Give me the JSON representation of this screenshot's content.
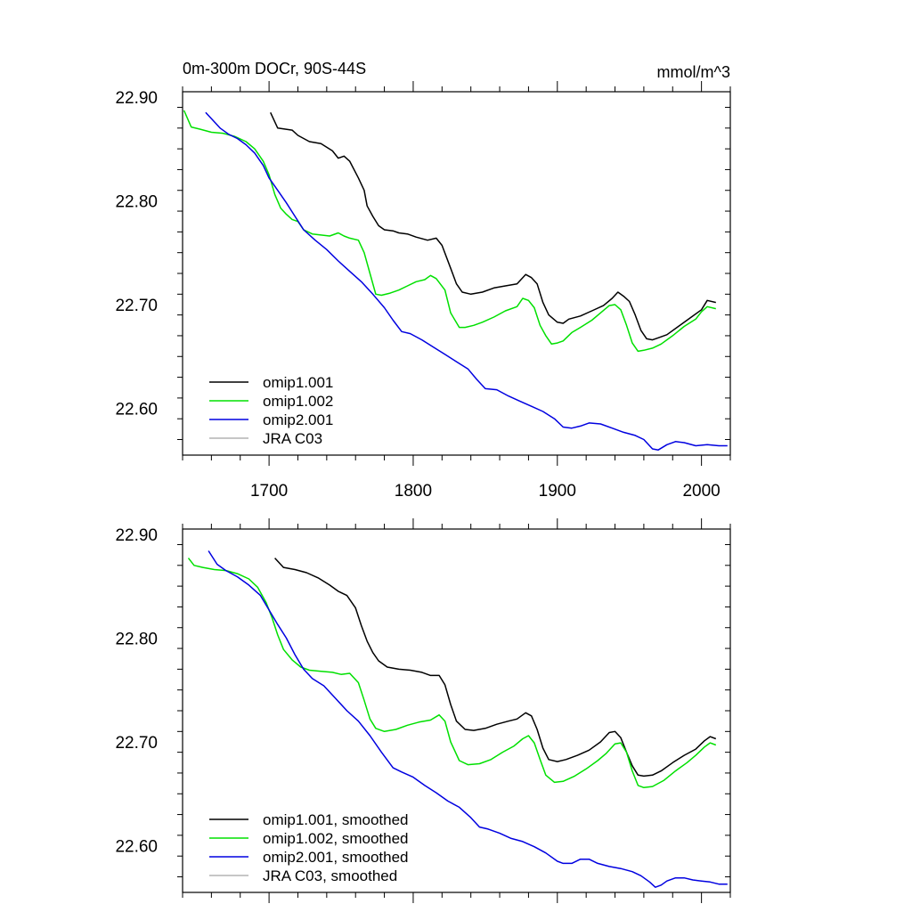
{
  "chart_data": [
    {
      "type": "line",
      "title": "0m-300m DOCr, 90S-44S",
      "units": "mmol/m^3",
      "xlim": [
        1640,
        2020
      ],
      "ylim": [
        22.555,
        22.905
      ],
      "yticks": [
        22.6,
        22.7,
        22.8,
        22.9
      ],
      "ytick_labels": [
        "22.60",
        "22.70",
        "22.80",
        "22.90"
      ],
      "xticks": [
        1700,
        1800,
        1900,
        2000
      ],
      "xtick_labels": [
        "1700",
        "1800",
        "1900",
        "2000"
      ],
      "show_xtick_labels": true,
      "legend_position": "bottom-left",
      "series": [
        {
          "name": "omip1.001",
          "color": "#000000",
          "x": [
            1701,
            1706,
            1716,
            1720,
            1728,
            1736,
            1744,
            1748,
            1752,
            1756,
            1762,
            1766,
            1768,
            1772,
            1776,
            1780,
            1786,
            1790,
            1796,
            1802,
            1810,
            1816,
            1820,
            1826,
            1830,
            1834,
            1840,
            1848,
            1856,
            1864,
            1872,
            1878,
            1882,
            1886,
            1890,
            1894,
            1900,
            1904,
            1908,
            1916,
            1924,
            1932,
            1938,
            1942,
            1946,
            1950,
            1954,
            1958,
            1962,
            1966,
            1970,
            1976,
            1984,
            1992,
            2000,
            2004,
            2010
          ],
          "y": [
            22.885,
            22.87,
            22.868,
            22.863,
            22.857,
            22.855,
            22.848,
            22.841,
            22.843,
            22.838,
            22.822,
            22.81,
            22.795,
            22.785,
            22.776,
            22.772,
            22.771,
            22.769,
            22.768,
            22.765,
            22.762,
            22.764,
            22.757,
            22.735,
            22.72,
            22.712,
            22.71,
            22.712,
            22.716,
            22.718,
            22.72,
            22.729,
            22.726,
            22.72,
            22.702,
            22.69,
            22.683,
            22.682,
            22.686,
            22.689,
            22.694,
            22.699,
            22.706,
            22.712,
            22.708,
            22.703,
            22.69,
            22.675,
            22.667,
            22.666,
            22.668,
            22.671,
            22.679,
            22.687,
            22.695,
            22.704,
            22.702
          ]
        },
        {
          "name": "omip1.002",
          "color": "#00e000",
          "x": [
            1641,
            1646,
            1652,
            1660,
            1668,
            1676,
            1684,
            1690,
            1696,
            1700,
            1704,
            1708,
            1712,
            1716,
            1720,
            1724,
            1730,
            1736,
            1742,
            1748,
            1752,
            1756,
            1762,
            1766,
            1770,
            1774,
            1778,
            1784,
            1790,
            1796,
            1802,
            1808,
            1812,
            1816,
            1822,
            1826,
            1832,
            1836,
            1842,
            1848,
            1856,
            1864,
            1872,
            1876,
            1880,
            1884,
            1888,
            1892,
            1896,
            1900,
            1904,
            1910,
            1916,
            1924,
            1930,
            1936,
            1940,
            1944,
            1948,
            1952,
            1956,
            1960,
            1966,
            1972,
            1980,
            1988,
            1996,
            2000,
            2004,
            2010
          ],
          "y": [
            22.887,
            22.871,
            22.869,
            22.866,
            22.865,
            22.862,
            22.857,
            22.85,
            22.838,
            22.825,
            22.806,
            22.793,
            22.787,
            22.782,
            22.78,
            22.772,
            22.768,
            22.767,
            22.766,
            22.769,
            22.766,
            22.764,
            22.762,
            22.75,
            22.73,
            22.71,
            22.709,
            22.711,
            22.714,
            22.718,
            22.722,
            22.724,
            22.728,
            22.725,
            22.714,
            22.692,
            22.678,
            22.678,
            22.68,
            22.683,
            22.688,
            22.694,
            22.698,
            22.706,
            22.704,
            22.697,
            22.68,
            22.67,
            22.662,
            22.663,
            22.665,
            22.673,
            22.678,
            22.685,
            22.692,
            22.699,
            22.7,
            22.695,
            22.68,
            22.663,
            22.655,
            22.656,
            22.658,
            22.662,
            22.67,
            22.679,
            22.686,
            22.693,
            22.698,
            22.696
          ]
        },
        {
          "name": "omip2.001",
          "color": "#0000e0",
          "x": [
            1656,
            1660,
            1666,
            1672,
            1678,
            1684,
            1690,
            1696,
            1700,
            1706,
            1712,
            1718,
            1724,
            1732,
            1740,
            1748,
            1756,
            1764,
            1772,
            1780,
            1786,
            1792,
            1798,
            1806,
            1814,
            1822,
            1830,
            1838,
            1844,
            1850,
            1858,
            1866,
            1874,
            1882,
            1890,
            1898,
            1904,
            1910,
            1916,
            1922,
            1930,
            1938,
            1946,
            1954,
            1960,
            1966,
            1970,
            1976,
            1982,
            1988,
            1996,
            2004,
            2012,
            2018
          ],
          "y": [
            22.885,
            22.879,
            22.87,
            22.864,
            22.86,
            22.854,
            22.846,
            22.834,
            22.822,
            22.81,
            22.798,
            22.785,
            22.772,
            22.762,
            22.753,
            22.742,
            22.732,
            22.722,
            22.71,
            22.697,
            22.685,
            22.674,
            22.672,
            22.666,
            22.659,
            22.652,
            22.645,
            22.638,
            22.628,
            22.619,
            22.618,
            22.612,
            22.607,
            22.602,
            22.597,
            22.59,
            22.582,
            22.581,
            22.583,
            22.586,
            22.585,
            22.581,
            22.577,
            22.574,
            22.57,
            22.561,
            22.56,
            22.565,
            22.568,
            22.567,
            22.564,
            22.565,
            22.564,
            22.564
          ]
        },
        {
          "name": "JRA C03",
          "color": "#b4b4b4",
          "x": [],
          "y": []
        }
      ]
    },
    {
      "type": "line",
      "title": "",
      "units": "",
      "xlim": [
        1640,
        2020
      ],
      "ylim": [
        22.555,
        22.905
      ],
      "yticks": [
        22.6,
        22.7,
        22.8,
        22.9
      ],
      "ytick_labels": [
        "22.60",
        "22.70",
        "22.80",
        "22.90"
      ],
      "xticks": [
        1700,
        1800,
        1900,
        2000
      ],
      "xtick_labels": [],
      "show_xtick_labels": false,
      "legend_position": "bottom-left",
      "series": [
        {
          "name": "omip1.001, smoothed",
          "color": "#000000",
          "x": [
            1704,
            1710,
            1718,
            1726,
            1734,
            1742,
            1748,
            1754,
            1760,
            1764,
            1768,
            1772,
            1776,
            1782,
            1790,
            1798,
            1806,
            1812,
            1818,
            1822,
            1826,
            1830,
            1836,
            1842,
            1850,
            1858,
            1866,
            1872,
            1878,
            1882,
            1886,
            1890,
            1894,
            1900,
            1906,
            1914,
            1922,
            1930,
            1936,
            1940,
            1944,
            1948,
            1952,
            1956,
            1960,
            1966,
            1972,
            1980,
            1988,
            1996,
            2002,
            2006,
            2010
          ],
          "y": [
            22.877,
            22.868,
            22.866,
            22.863,
            22.858,
            22.851,
            22.845,
            22.841,
            22.829,
            22.812,
            22.797,
            22.786,
            22.778,
            22.772,
            22.77,
            22.769,
            22.767,
            22.764,
            22.764,
            22.755,
            22.736,
            22.72,
            22.712,
            22.711,
            22.713,
            22.717,
            22.72,
            22.722,
            22.728,
            22.725,
            22.712,
            22.694,
            22.683,
            22.681,
            22.683,
            22.687,
            22.692,
            22.7,
            22.709,
            22.71,
            22.704,
            22.69,
            22.677,
            22.668,
            22.667,
            22.668,
            22.672,
            22.68,
            22.687,
            22.693,
            22.701,
            22.705,
            22.703
          ]
        },
        {
          "name": "omip1.002, smoothed",
          "color": "#00e000",
          "x": [
            1644,
            1648,
            1654,
            1662,
            1670,
            1678,
            1686,
            1692,
            1698,
            1702,
            1706,
            1710,
            1716,
            1722,
            1728,
            1736,
            1744,
            1750,
            1756,
            1762,
            1766,
            1770,
            1774,
            1780,
            1788,
            1796,
            1804,
            1812,
            1818,
            1822,
            1826,
            1832,
            1838,
            1846,
            1854,
            1862,
            1870,
            1876,
            1880,
            1884,
            1888,
            1892,
            1898,
            1904,
            1912,
            1920,
            1928,
            1934,
            1940,
            1944,
            1948,
            1952,
            1956,
            1960,
            1966,
            1974,
            1982,
            1990,
            1996,
            2002,
            2006,
            2010
          ],
          "y": [
            22.877,
            22.87,
            22.868,
            22.866,
            22.865,
            22.862,
            22.857,
            22.849,
            22.834,
            22.82,
            22.803,
            22.789,
            22.779,
            22.772,
            22.769,
            22.768,
            22.767,
            22.765,
            22.766,
            22.757,
            22.74,
            22.722,
            22.713,
            22.71,
            22.712,
            22.716,
            22.719,
            22.721,
            22.726,
            22.72,
            22.7,
            22.682,
            22.678,
            22.679,
            22.683,
            22.69,
            22.696,
            22.703,
            22.706,
            22.699,
            22.683,
            22.668,
            22.661,
            22.662,
            22.667,
            22.674,
            22.682,
            22.689,
            22.698,
            22.699,
            22.69,
            22.672,
            22.658,
            22.656,
            22.657,
            22.663,
            22.672,
            22.68,
            22.687,
            22.695,
            22.699,
            22.697
          ]
        },
        {
          "name": "omip2.001, smoothed",
          "color": "#0000e0",
          "x": [
            1658,
            1664,
            1670,
            1678,
            1686,
            1694,
            1700,
            1706,
            1712,
            1718,
            1724,
            1730,
            1738,
            1746,
            1754,
            1762,
            1770,
            1778,
            1786,
            1792,
            1800,
            1808,
            1816,
            1824,
            1832,
            1840,
            1846,
            1852,
            1860,
            1868,
            1876,
            1884,
            1892,
            1900,
            1904,
            1910,
            1916,
            1922,
            1928,
            1936,
            1944,
            1952,
            1958,
            1964,
            1968,
            1972,
            1976,
            1982,
            1988,
            1994,
            2000,
            2006,
            2012,
            2018
          ],
          "y": [
            22.884,
            22.871,
            22.865,
            22.859,
            22.851,
            22.841,
            22.827,
            22.813,
            22.8,
            22.784,
            22.77,
            22.761,
            22.754,
            22.742,
            22.73,
            22.72,
            22.706,
            22.69,
            22.675,
            22.671,
            22.666,
            22.658,
            22.651,
            22.643,
            22.637,
            22.627,
            22.618,
            22.616,
            22.612,
            22.607,
            22.604,
            22.599,
            22.593,
            22.585,
            22.583,
            22.583,
            22.587,
            22.587,
            22.583,
            22.58,
            22.578,
            22.575,
            22.571,
            22.565,
            22.56,
            22.562,
            22.566,
            22.569,
            22.569,
            22.567,
            22.566,
            22.565,
            22.563,
            22.563
          ]
        },
        {
          "name": "JRA C03, smoothed",
          "color": "#b4b4b4",
          "x": [],
          "y": []
        }
      ]
    }
  ]
}
